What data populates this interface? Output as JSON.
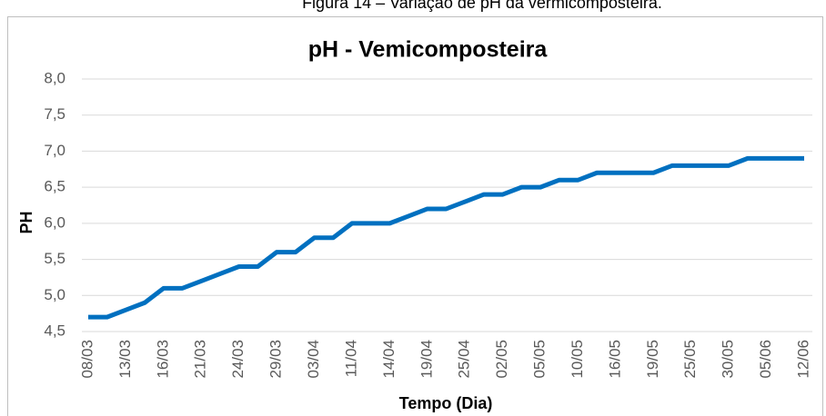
{
  "caption": "Figura 14 – Variação de pH da vermicomposteira.",
  "chart_data": {
    "type": "line",
    "title": "pH - Vemicomposteira",
    "x_label": "Tempo (Dia)",
    "y_label": "PH",
    "categories": [
      "08/03",
      null,
      "13/03",
      null,
      "16/03",
      null,
      "21/03",
      null,
      "24/03",
      null,
      "29/03",
      null,
      "03/04",
      null,
      "11/04",
      null,
      "14/04",
      null,
      "19/04",
      null,
      "25/04",
      null,
      "02/05",
      null,
      "05/05",
      null,
      "10/05",
      null,
      "16/05",
      null,
      "19/05",
      null,
      "25/05",
      null,
      "30/05",
      null,
      "05/06",
      null,
      "12/06"
    ],
    "series": [
      {
        "name": "pH",
        "color": "#0070c0",
        "values": [
          4.7,
          4.7,
          4.8,
          4.9,
          5.1,
          5.1,
          5.2,
          5.3,
          5.4,
          5.4,
          5.6,
          5.6,
          5.8,
          5.8,
          6.0,
          6.0,
          6.0,
          6.1,
          6.2,
          6.2,
          6.3,
          6.4,
          6.4,
          6.5,
          6.5,
          6.6,
          6.6,
          6.7,
          6.7,
          6.7,
          6.7,
          6.8,
          6.8,
          6.8,
          6.8,
          6.9,
          6.9,
          6.9,
          6.9
        ]
      }
    ],
    "ylim": [
      4.5,
      8.0
    ],
    "yticks": [
      {
        "value": 4.5,
        "label": "4,5"
      },
      {
        "value": 5.0,
        "label": "5,0"
      },
      {
        "value": 5.5,
        "label": "5,5"
      },
      {
        "value": 6.0,
        "label": "6,0"
      },
      {
        "value": 6.5,
        "label": "6,5"
      },
      {
        "value": 7.0,
        "label": "7,0"
      },
      {
        "value": 7.5,
        "label": "7,5"
      },
      {
        "value": 8.0,
        "label": "8,0"
      }
    ],
    "grid": true
  }
}
